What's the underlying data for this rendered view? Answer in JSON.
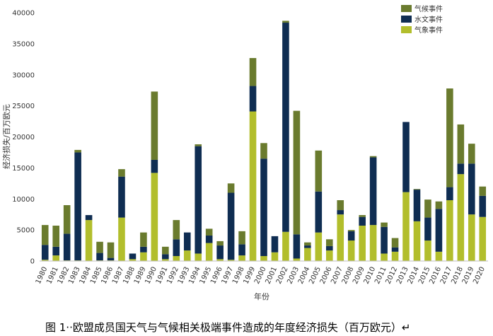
{
  "caption": "图 1‧‧欧盟成员国天气与气候相关极端事件造成的年度经济损失（百万欧元）↵",
  "caption_mark": "↵",
  "chart_data": {
    "type": "bar",
    "stacked": true,
    "xlabel": "年份",
    "ylabel": "经济损失/百万欧元",
    "ylim": [
      0,
      40000
    ],
    "yticks": [
      0,
      5000,
      10000,
      15000,
      20000,
      25000,
      30000,
      35000,
      40000
    ],
    "grid": false,
    "legend_position": "top-right",
    "categories": [
      "1980",
      "1981",
      "1982",
      "1983",
      "1984",
      "1985",
      "1986",
      "1987",
      "1988",
      "1989",
      "1990",
      "1991",
      "1992",
      "1993",
      "1994",
      "1995",
      "1996",
      "1997",
      "1998",
      "1999",
      "2000",
      "2001",
      "2002",
      "2003",
      "2004",
      "2005",
      "2006",
      "2007",
      "2008",
      "2009",
      "2010",
      "2011",
      "2012",
      "2013",
      "2014",
      "2015",
      "2016",
      "2017",
      "2018",
      "2019",
      "2020"
    ],
    "series": [
      {
        "name": "气象事件",
        "color": "#b2be2c",
        "values": [
          200,
          900,
          100,
          100,
          6600,
          100,
          100,
          7000,
          300,
          1400,
          14200,
          300,
          800,
          1700,
          1200,
          2900,
          300,
          200,
          900,
          24100,
          800,
          1400,
          4700,
          400,
          2100,
          4600,
          1700,
          7500,
          3300,
          5700,
          5800,
          1200,
          1500,
          11100,
          6400,
          3300,
          1500,
          9800,
          14000,
          7500,
          7100
        ]
      },
      {
        "name": "水文事件",
        "color": "#0f2d52",
        "values": [
          2400,
          1400,
          4300,
          17400,
          800,
          1200,
          400,
          6600,
          900,
          900,
          2100,
          800,
          2700,
          2900,
          17300,
          1200,
          2200,
          10800,
          1800,
          4100,
          15700,
          2600,
          33700,
          3900,
          400,
          6600,
          700,
          700,
          1500,
          1400,
          10900,
          4300,
          700,
          11300,
          5100,
          3700,
          6900,
          2100,
          1700,
          8200,
          3400
        ]
      },
      {
        "name": "气候事件",
        "color": "#6a7b2e",
        "values": [
          3200,
          3400,
          4600,
          400,
          0,
          1800,
          2500,
          1200,
          0,
          2300,
          11000,
          1200,
          3100,
          0,
          300,
          1100,
          700,
          1500,
          2100,
          4500,
          2500,
          0,
          300,
          19900,
          500,
          6600,
          1100,
          1600,
          200,
          300,
          200,
          700,
          1500,
          0,
          100,
          2900,
          1200,
          15900,
          6300,
          3200,
          1500
        ]
      }
    ]
  }
}
